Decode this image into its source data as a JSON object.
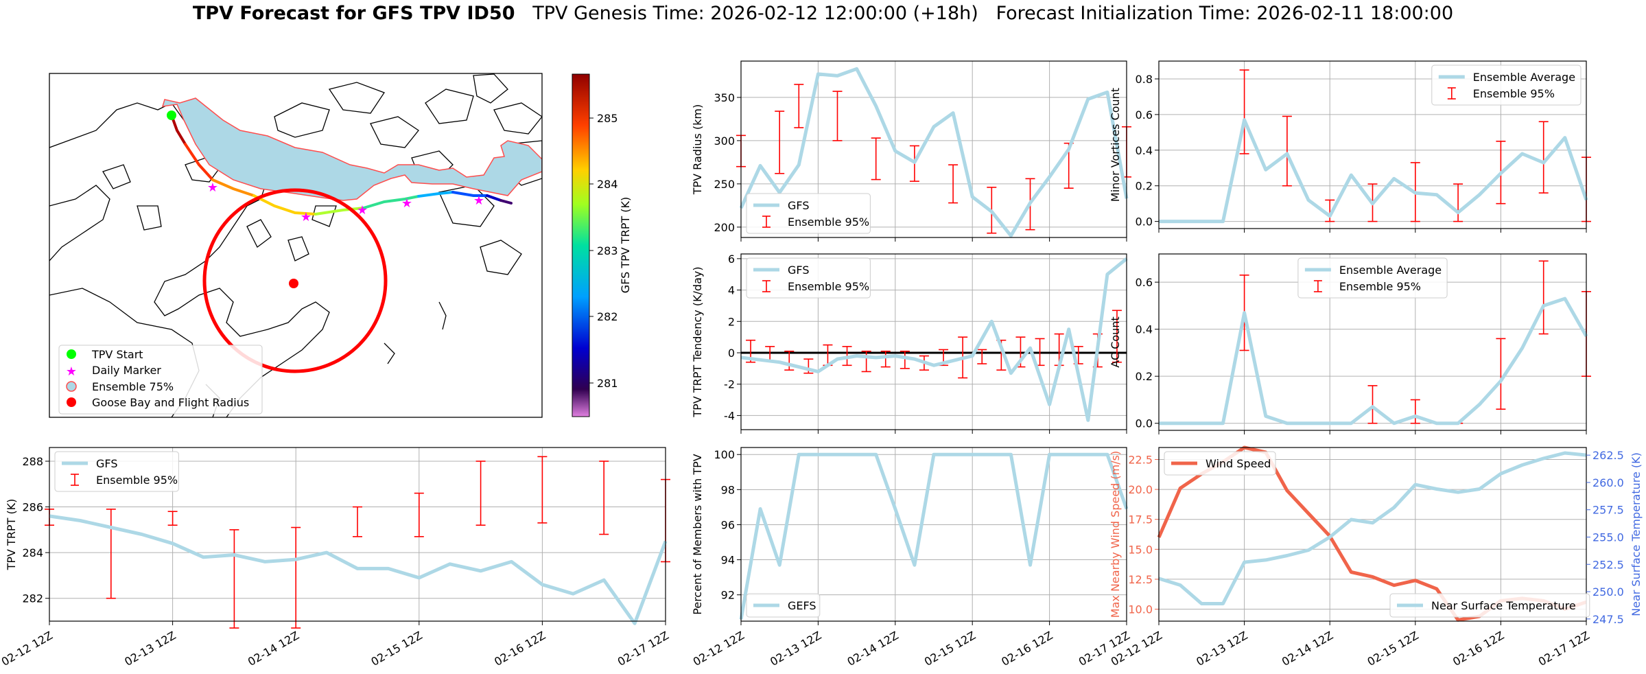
{
  "header": {
    "title_bold": "TPV Forecast for GFS TPV ID50",
    "genesis": "TPV Genesis Time: 2026-02-12 12:00:00 (+18h)",
    "init": "Forecast Initialization Time: 2026-02-11 18:00:00"
  },
  "colors": {
    "gfs": "#add8e6",
    "error": "#ff0000",
    "wind": "#f0644a",
    "temp": "#4169e1"
  },
  "map": {
    "colorbar_label": "GFS TPV TRPT (K)",
    "colorbar_ticks": [
      "281",
      "282",
      "283",
      "284",
      "285"
    ],
    "legend": [
      "TPV Start",
      "Daily Marker",
      "Ensemble 75%",
      "Goose Bay and Flight Radius"
    ]
  },
  "chart_data": [
    {
      "id": "radius",
      "type": "line",
      "ylabel": "TPV Radius (km)",
      "ylim": [
        188,
        392
      ],
      "yticks": [
        200,
        250,
        300,
        350
      ],
      "grid": true,
      "legend_loc": "bottom-left",
      "x_hours": [
        0,
        6,
        12,
        18,
        24,
        30,
        36,
        42,
        48,
        54,
        60,
        66,
        72,
        78,
        84,
        90,
        96,
        102,
        108,
        114,
        120
      ],
      "series": [
        {
          "name": "GFS",
          "values": [
            222,
            271,
            240,
            272,
            377,
            375,
            383,
            340,
            288,
            275,
            316,
            332,
            235,
            218,
            190,
            228,
            258,
            290,
            348,
            356,
            233
          ]
        }
      ],
      "errorbars": [
        {
          "x": 0,
          "lo": 270,
          "hi": 306
        },
        {
          "x": 12,
          "lo": 262,
          "hi": 334
        },
        {
          "x": 18,
          "lo": 315,
          "hi": 365
        },
        {
          "x": 30,
          "lo": 300,
          "hi": 357
        },
        {
          "x": 42,
          "lo": 255,
          "hi": 303
        },
        {
          "x": 54,
          "lo": 253,
          "hi": 294
        },
        {
          "x": 66,
          "lo": 228,
          "hi": 272
        },
        {
          "x": 78,
          "lo": 193,
          "hi": 246
        },
        {
          "x": 90,
          "lo": 197,
          "hi": 256
        },
        {
          "x": 102,
          "lo": 245,
          "hi": 297
        },
        {
          "x": 120,
          "lo": 258,
          "hi": 316
        }
      ],
      "legend": [
        "GFS",
        "Ensemble 95%"
      ]
    },
    {
      "id": "minor",
      "type": "line",
      "ylabel": "Minor Vortices Count",
      "ylim": [
        -0.04,
        0.9
      ],
      "yticks": [
        0.0,
        0.2,
        0.4,
        0.6,
        0.8
      ],
      "grid": true,
      "legend_loc": "top-right",
      "x_hours": [
        0,
        6,
        12,
        18,
        24,
        30,
        36,
        42,
        48,
        54,
        60,
        66,
        72,
        78,
        84,
        90,
        96,
        102,
        108,
        114,
        120
      ],
      "series": [
        {
          "name": "Ensemble Average",
          "values": [
            0,
            0,
            0,
            0,
            0.57,
            0.29,
            0.38,
            0.12,
            0.03,
            0.26,
            0.1,
            0.24,
            0.16,
            0.15,
            0.05,
            0.15,
            0.27,
            0.38,
            0.33,
            0.47,
            0.12
          ]
        }
      ],
      "errorbars": [
        {
          "x": 12,
          "lo": 0,
          "hi": 0
        },
        {
          "x": 24,
          "lo": 0.38,
          "hi": 0.85
        },
        {
          "x": 36,
          "lo": 0.2,
          "hi": 0.59
        },
        {
          "x": 48,
          "lo": 0,
          "hi": 0.12
        },
        {
          "x": 60,
          "lo": 0,
          "hi": 0.21
        },
        {
          "x": 72,
          "lo": 0,
          "hi": 0.33
        },
        {
          "x": 84,
          "lo": 0,
          "hi": 0.21
        },
        {
          "x": 96,
          "lo": 0.1,
          "hi": 0.45
        },
        {
          "x": 108,
          "lo": 0.16,
          "hi": 0.56
        },
        {
          "x": 120,
          "lo": 0,
          "hi": 0.36
        }
      ],
      "legend": [
        "Ensemble Average",
        "Ensemble 95%"
      ]
    },
    {
      "id": "tendency",
      "type": "line",
      "ylabel": "TPV TRPT Tendency (K/day)",
      "ylim": [
        -4.9,
        6.3
      ],
      "yticks": [
        -4,
        -2,
        0,
        2,
        4,
        6
      ],
      "grid": true,
      "legend_loc": "top-left",
      "zero_line": true,
      "x_hours": [
        0,
        6,
        12,
        18,
        24,
        30,
        36,
        42,
        48,
        54,
        60,
        66,
        72,
        78,
        84,
        90,
        96,
        102,
        108,
        114,
        120
      ],
      "series": [
        {
          "name": "GFS",
          "values": [
            -0.3,
            -0.45,
            -0.6,
            -0.9,
            -1.2,
            -0.4,
            -0.2,
            -0.3,
            -0.2,
            -0.4,
            -0.8,
            -0.5,
            -0.2,
            2.0,
            -1.3,
            0.3,
            -3.3,
            1.5,
            -4.3,
            5.0,
            6.0
          ]
        }
      ],
      "errorbars": [
        {
          "x": 3,
          "lo": -0.6,
          "hi": 0.8
        },
        {
          "x": 9,
          "lo": -0.5,
          "hi": 0.4
        },
        {
          "x": 15,
          "lo": -1.1,
          "hi": 0.1
        },
        {
          "x": 21,
          "lo": -1.3,
          "hi": -0.4
        },
        {
          "x": 27,
          "lo": -0.8,
          "hi": 0.5
        },
        {
          "x": 33,
          "lo": -0.8,
          "hi": 0.4
        },
        {
          "x": 39,
          "lo": -1.2,
          "hi": 0.1
        },
        {
          "x": 45,
          "lo": -0.9,
          "hi": 0.1
        },
        {
          "x": 51,
          "lo": -1.0,
          "hi": 0.1
        },
        {
          "x": 57,
          "lo": -1.1,
          "hi": -0.2
        },
        {
          "x": 63,
          "lo": -0.8,
          "hi": 0.2
        },
        {
          "x": 69,
          "lo": -1.6,
          "hi": 1.0
        },
        {
          "x": 75,
          "lo": -0.7,
          "hi": 0.2
        },
        {
          "x": 81,
          "lo": -1.1,
          "hi": 0.8
        },
        {
          "x": 87,
          "lo": -0.9,
          "hi": 1.0
        },
        {
          "x": 93,
          "lo": -0.8,
          "hi": 0.9
        },
        {
          "x": 99,
          "lo": -0.8,
          "hi": 1.2
        },
        {
          "x": 105,
          "lo": -0.7,
          "hi": 0.4
        },
        {
          "x": 111,
          "lo": -0.9,
          "hi": 1.2
        },
        {
          "x": 117,
          "lo": -0.6,
          "hi": 2.7
        }
      ],
      "legend": [
        "GFS",
        "Ensemble 95%"
      ]
    },
    {
      "id": "ac",
      "type": "line",
      "ylabel": "AC Count",
      "ylim": [
        -0.03,
        0.72
      ],
      "yticks": [
        0.0,
        0.2,
        0.4,
        0.6
      ],
      "grid": true,
      "legend_loc": "top-center",
      "x_hours": [
        0,
        6,
        12,
        18,
        24,
        30,
        36,
        42,
        48,
        54,
        60,
        66,
        72,
        78,
        84,
        90,
        96,
        102,
        108,
        114,
        120
      ],
      "series": [
        {
          "name": "Ensemble Average",
          "values": [
            0,
            0,
            0,
            0,
            0.47,
            0.03,
            0,
            0,
            0,
            0,
            0.07,
            0,
            0.03,
            0,
            0,
            0.08,
            0.18,
            0.32,
            0.5,
            0.53,
            0.37
          ]
        }
      ],
      "errorbars": [
        {
          "x": 12,
          "lo": 0,
          "hi": 0
        },
        {
          "x": 24,
          "lo": 0.31,
          "hi": 0.63
        },
        {
          "x": 48,
          "lo": 0,
          "hi": 0
        },
        {
          "x": 60,
          "lo": 0,
          "hi": 0.16
        },
        {
          "x": 72,
          "lo": 0,
          "hi": 0.1
        },
        {
          "x": 84,
          "lo": 0,
          "hi": 0
        },
        {
          "x": 96,
          "lo": 0.06,
          "hi": 0.36
        },
        {
          "x": 108,
          "lo": 0.38,
          "hi": 0.69
        },
        {
          "x": 120,
          "lo": 0.2,
          "hi": 0.56
        }
      ],
      "legend": [
        "Ensemble Average",
        "Ensemble 95%"
      ]
    },
    {
      "id": "trpt",
      "type": "line",
      "ylabel": "TPV TRPT (K)",
      "ylim": [
        281.0,
        288.6
      ],
      "yticks": [
        282,
        284,
        286,
        288
      ],
      "grid": true,
      "legend_loc": "top-left",
      "x_hours": [
        0,
        6,
        12,
        18,
        24,
        30,
        36,
        42,
        48,
        54,
        60,
        66,
        72,
        78,
        84,
        90,
        96,
        102,
        108,
        114,
        120
      ],
      "series": [
        {
          "name": "GFS",
          "values": [
            285.6,
            285.4,
            285.1,
            284.8,
            284.4,
            283.8,
            283.9,
            283.6,
            283.7,
            284.0,
            283.3,
            283.3,
            282.9,
            283.5,
            283.2,
            283.6,
            282.6,
            282.2,
            282.8,
            280.9,
            284.5
          ]
        }
      ],
      "errorbars": [
        {
          "x": 0,
          "lo": 285.2,
          "hi": 285.9
        },
        {
          "x": 12,
          "lo": 282.0,
          "hi": 285.9
        },
        {
          "x": 24,
          "lo": 285.2,
          "hi": 285.8
        },
        {
          "x": 36,
          "lo": 280.7,
          "hi": 285.0
        },
        {
          "x": 48,
          "lo": 280.7,
          "hi": 285.1
        },
        {
          "x": 60,
          "lo": 284.7,
          "hi": 286.0
        },
        {
          "x": 72,
          "lo": 284.7,
          "hi": 286.6
        },
        {
          "x": 84,
          "lo": 285.2,
          "hi": 288.0
        },
        {
          "x": 96,
          "lo": 285.3,
          "hi": 288.2
        },
        {
          "x": 108,
          "lo": 284.8,
          "hi": 288.0
        },
        {
          "x": 120,
          "lo": 283.6,
          "hi": 287.2
        }
      ],
      "legend": [
        "GFS",
        "Ensemble 95%"
      ]
    },
    {
      "id": "percent",
      "type": "line",
      "ylabel": "Percent of Members with TPV",
      "ylim": [
        90.5,
        100.4
      ],
      "yticks": [
        92,
        94,
        96,
        98,
        100
      ],
      "grid": true,
      "legend_loc": "bottom-left",
      "x_hours": [
        0,
        6,
        12,
        18,
        24,
        30,
        36,
        42,
        48,
        54,
        60,
        66,
        72,
        78,
        84,
        90,
        96,
        102,
        108,
        114,
        120
      ],
      "series": [
        {
          "name": "GEFS",
          "values": [
            90.6,
            96.9,
            93.7,
            100,
            100,
            100,
            100,
            100,
            96.9,
            93.7,
            100,
            100,
            100,
            100,
            100,
            93.7,
            100,
            100,
            100,
            100,
            96.9
          ]
        }
      ],
      "errorbars": [],
      "legend": [
        "GEFS"
      ]
    },
    {
      "id": "wind",
      "type": "line",
      "ylabel": "Max Nearby Wind Speed (m/s)",
      "ylim": [
        9.0,
        23.5
      ],
      "yticks": [
        10.0,
        12.5,
        15.0,
        17.5,
        20.0,
        22.5
      ],
      "grid": true,
      "legend_loc": "top-left",
      "y2label": "Near Surface Temperature (K)",
      "y2lim": [
        247.3,
        263.2
      ],
      "y2ticks": [
        247.5,
        250.0,
        252.5,
        255.0,
        257.5,
        260.0,
        262.5
      ],
      "x_hours": [
        0,
        6,
        12,
        18,
        24,
        30,
        36,
        42,
        48,
        54,
        60,
        66,
        72,
        78,
        84,
        90,
        96,
        102,
        108,
        114,
        120
      ],
      "series": [
        {
          "name": "Wind Speed",
          "axis": "left",
          "values": [
            16.0,
            20.1,
            21.3,
            22.3,
            23.5,
            23.1,
            19.9,
            18.0,
            16.1,
            13.1,
            12.7,
            12.0,
            12.4,
            11.7,
            9.1,
            9.4,
            10.7,
            10.9,
            10.7,
            10.0,
            10.6
          ]
        },
        {
          "name": "Near Surface Temperature",
          "axis": "right",
          "values": [
            251.2,
            250.6,
            248.9,
            248.9,
            252.7,
            252.9,
            253.3,
            253.8,
            255.0,
            256.6,
            256.3,
            257.7,
            259.8,
            259.4,
            259.1,
            259.4,
            260.8,
            261.6,
            262.2,
            262.7,
            262.5
          ]
        }
      ],
      "errorbars": [],
      "legend": [
        "Wind Speed",
        "Near Surface Temperature"
      ]
    }
  ],
  "xticks": [
    "02-12 12Z",
    "02-13 12Z",
    "02-14 12Z",
    "02-15 12Z",
    "02-16 12Z",
    "02-17 12Z"
  ]
}
